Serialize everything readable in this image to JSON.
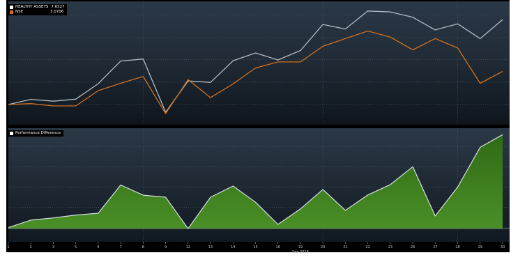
{
  "colors": {
    "healthy_assets": "#b4bcc4",
    "nse": "#d2701f",
    "difference_fill": "#3e7d1f",
    "difference_line": "#d8dfe4",
    "background": "#1a2430"
  },
  "chart_data": [
    {
      "type": "line",
      "x": [
        "1",
        "2",
        "3",
        "5",
        "6",
        "7",
        "8",
        "9",
        "12",
        "13",
        "14",
        "15",
        "16",
        "19",
        "20",
        "21",
        "22",
        "23",
        "26",
        "27",
        "28",
        "29",
        "30"
      ],
      "x_tick_labels": [
        "1",
        "2",
        "3",
        "5",
        "6",
        "7",
        "8",
        "9",
        "12",
        "13",
        "14",
        "15",
        "16",
        "19",
        "20",
        "21",
        "22",
        "23",
        "26",
        "27",
        "28",
        "29",
        "30"
      ],
      "xlabel": "Sep 2016",
      "series": [
        {
          "name": "HEALTHY ASSETS",
          "legend_value": "7.6527",
          "values": [
            0.0,
            0.23,
            0.15,
            0.24,
            0.93,
            1.94,
            2.03,
            -0.34,
            1.05,
            0.99,
            1.95,
            2.3,
            1.99,
            2.41,
            3.57,
            3.37,
            4.17,
            4.13,
            3.89,
            3.33,
            3.6,
            2.94,
            3.79
          ]
        },
        {
          "name": "NSE",
          "legend_value": "3.0706",
          "values": [
            0.0,
            0.04,
            -0.06,
            -0.06,
            0.62,
            0.95,
            1.25,
            -0.4,
            1.11,
            0.31,
            0.92,
            1.63,
            1.9,
            1.9,
            2.6,
            2.94,
            3.28,
            3.01,
            2.44,
            2.94,
            2.52,
            0.95,
            1.48
          ]
        }
      ]
    },
    {
      "type": "area",
      "x": [
        "1",
        "2",
        "3",
        "5",
        "6",
        "7",
        "8",
        "9",
        "12",
        "13",
        "14",
        "15",
        "16",
        "19",
        "20",
        "21",
        "22",
        "23",
        "26",
        "27",
        "28",
        "29",
        "30"
      ],
      "series": [
        {
          "name": "Performance Difference",
          "values": [
            0.0,
            0.37,
            0.48,
            0.62,
            0.71,
            2.1,
            1.6,
            1.5,
            -0.05,
            1.5,
            2.05,
            1.25,
            0.16,
            0.92,
            1.88,
            0.85,
            1.61,
            2.12,
            3.0,
            0.57,
            2.0,
            3.96,
            4.58
          ]
        }
      ]
    }
  ]
}
